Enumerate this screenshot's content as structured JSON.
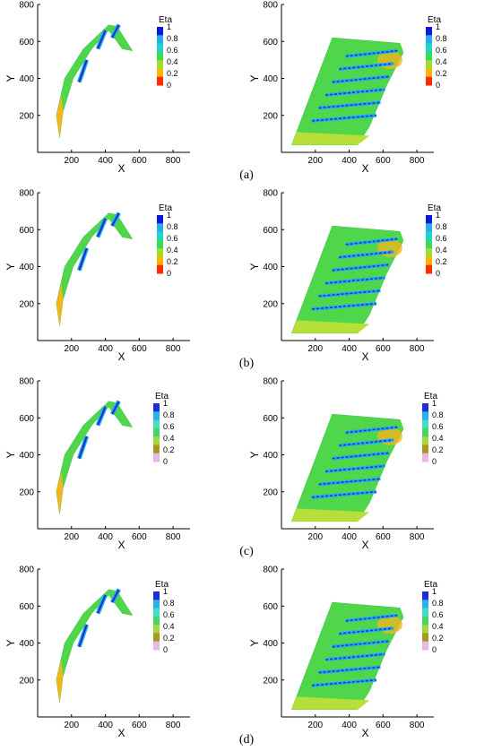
{
  "panel_labels": [
    "(a)",
    "(b)",
    "(c)",
    "(d)"
  ],
  "chart_data": [
    {
      "type": "heatmap",
      "panel": "(a)",
      "view": "left",
      "xlabel": "X",
      "ylabel": "Y",
      "xticks": [
        200,
        400,
        600,
        800
      ],
      "yticks": [
        200,
        400,
        600,
        800
      ],
      "xlim": [
        0,
        900
      ],
      "ylim": [
        0,
        800
      ],
      "legend_title": "Eta",
      "legend_ticks": [
        "1",
        "0.8",
        "0.6",
        "0.4",
        "0.2",
        "0"
      ],
      "scale": "a",
      "stripes": 3
    },
    {
      "type": "heatmap",
      "panel": "(a)",
      "view": "right",
      "xlabel": "X",
      "ylabel": "Y",
      "xticks": [
        200,
        400,
        600,
        800
      ],
      "yticks": [
        200,
        400,
        600,
        800
      ],
      "xlim": [
        0,
        900
      ],
      "ylim": [
        0,
        800
      ],
      "legend_title": "Eta",
      "legend_ticks": [
        "1",
        "0.8",
        "0.6",
        "0.4",
        "0.2",
        "0"
      ],
      "scale": "a",
      "stripes": 6
    },
    {
      "type": "heatmap",
      "panel": "(b)",
      "view": "left",
      "xlabel": "X",
      "ylabel": "Y",
      "xticks": [
        200,
        400,
        600,
        800
      ],
      "yticks": [
        200,
        400,
        600,
        800
      ],
      "xlim": [
        0,
        900
      ],
      "ylim": [
        0,
        800
      ],
      "legend_title": "Eta",
      "legend_ticks": [
        "1",
        "0.8",
        "0.6",
        "0.4",
        "0.2",
        "0"
      ],
      "scale": "a",
      "stripes": 3
    },
    {
      "type": "heatmap",
      "panel": "(b)",
      "view": "right",
      "xlabel": "X",
      "ylabel": "Y",
      "xticks": [
        200,
        400,
        600,
        800
      ],
      "yticks": [
        200,
        400,
        600,
        800
      ],
      "xlim": [
        0,
        900
      ],
      "ylim": [
        0,
        800
      ],
      "legend_title": "Eta",
      "legend_ticks": [
        "1",
        "0.8",
        "0.6",
        "0.4",
        "0.2",
        "0"
      ],
      "scale": "a",
      "stripes": 6
    },
    {
      "type": "heatmap",
      "panel": "(c)",
      "view": "left",
      "xlabel": "X",
      "ylabel": "Y",
      "xticks": [
        200,
        400,
        600,
        800
      ],
      "yticks": [
        200,
        400,
        600,
        800
      ],
      "xlim": [
        0,
        900
      ],
      "ylim": [
        0,
        800
      ],
      "legend_title": "Eta",
      "legend_ticks": [
        "1",
        "0.8",
        "0.6",
        "0.4",
        "0.2",
        "0"
      ],
      "scale": "c",
      "stripes": 3
    },
    {
      "type": "heatmap",
      "panel": "(c)",
      "view": "right",
      "xlabel": "X",
      "ylabel": "Y",
      "xticks": [
        200,
        400,
        600,
        800
      ],
      "yticks": [
        200,
        400,
        600,
        800
      ],
      "xlim": [
        0,
        900
      ],
      "ylim": [
        0,
        800
      ],
      "legend_title": "Eta",
      "legend_ticks": [
        "1",
        "0.8",
        "0.6",
        "0.4",
        "0.2",
        "0"
      ],
      "scale": "c",
      "stripes": 6
    },
    {
      "type": "heatmap",
      "panel": "(d)",
      "view": "left",
      "xlabel": "X",
      "ylabel": "Y",
      "xticks": [
        200,
        400,
        600,
        800
      ],
      "yticks": [
        200,
        400,
        600,
        800
      ],
      "xlim": [
        0,
        900
      ],
      "ylim": [
        0,
        800
      ],
      "legend_title": "Eta",
      "legend_ticks": [
        "1",
        "0.8",
        "0.6",
        "0.4",
        "0.2",
        "0"
      ],
      "scale": "c",
      "stripes": 3
    },
    {
      "type": "heatmap",
      "panel": "(d)",
      "view": "right",
      "xlabel": "X",
      "ylabel": "Y",
      "xticks": [
        200,
        400,
        600,
        800
      ],
      "yticks": [
        200,
        400,
        600,
        800
      ],
      "xlim": [
        0,
        900
      ],
      "ylim": [
        0,
        800
      ],
      "legend_title": "Eta",
      "legend_ticks": [
        "1",
        "0.8",
        "0.6",
        "0.4",
        "0.2",
        "0"
      ],
      "scale": "c",
      "stripes": 6
    }
  ],
  "colorscales": {
    "a": [
      "#0a1ad8",
      "#25aee8",
      "#22d3d0",
      "#3cd85a",
      "#9fde2a",
      "#ffb500",
      "#ff2a00"
    ],
    "c": [
      "#1e2ed6",
      "#27b2f0",
      "#49dcbf",
      "#45d46a",
      "#a3d93c",
      "#a49a1e",
      "#e8b7e8"
    ]
  },
  "surface_colors": {
    "base": "#4fd64a",
    "light": "#77e07c",
    "yellow": "#b6df3a",
    "orange": "#f2b51c",
    "cyan": "#4fe0d4"
  }
}
